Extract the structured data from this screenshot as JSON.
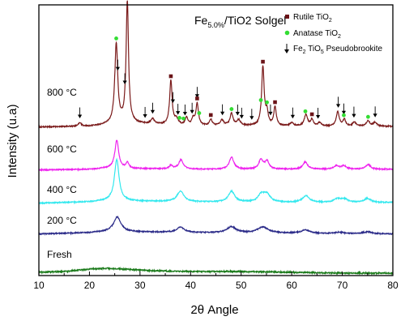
{
  "chart_data": {
    "type": "line",
    "title_main": "Fe",
    "title_sub": "5.0%",
    "title_rest": "/TiO2 Solgel",
    "xlabel_pre": "2",
    "xlabel_theta": "θ",
    "xlabel_post": " Angle",
    "ylabel": "Intensity (u.a)",
    "xlim": [
      10,
      80
    ],
    "xticks": [
      "10",
      "20",
      "30",
      "40",
      "50",
      "60",
      "70",
      "80"
    ],
    "grid": false,
    "legend_position": "top-right",
    "legend": [
      {
        "marker": "square",
        "color": "#6b1418",
        "text": "Rutile TiO",
        "sub": "2"
      },
      {
        "marker": "circle",
        "color": "#33dd33",
        "text": "Anatase TiO",
        "sub": "2"
      },
      {
        "marker": "arrow",
        "color": "#000000",
        "text": "Fe",
        "sub": "2",
        "text2": " TiO",
        "sub2": "5",
        "text3": " Pseudobrookite"
      }
    ],
    "series": [
      {
        "name": "800 °C",
        "color": "#7a1a1a",
        "baseline": 0.0,
        "background": [
          [
            10,
            4
          ],
          [
            20,
            5
          ],
          [
            24,
            8
          ],
          [
            28,
            10
          ],
          [
            32,
            8
          ],
          [
            40,
            6
          ],
          [
            50,
            6
          ],
          [
            60,
            5
          ],
          [
            70,
            5
          ],
          [
            80,
            5
          ]
        ],
        "peaks": [
          [
            18.1,
            5,
            0.4
          ],
          [
            25.3,
            120,
            0.35
          ],
          [
            27.4,
            26,
            0.3
          ],
          [
            27.5,
            158,
            0.28
          ],
          [
            32.5,
            8,
            0.4
          ],
          [
            36.1,
            66,
            0.3
          ],
          [
            37.2,
            8,
            0.4
          ],
          [
            39.2,
            12,
            0.3
          ],
          [
            40.5,
            10,
            0.3
          ],
          [
            41.3,
            33,
            0.3
          ],
          [
            44.0,
            9,
            0.3
          ],
          [
            46.2,
            8,
            0.4
          ],
          [
            48.1,
            18,
            0.35
          ],
          [
            49.5,
            8,
            0.4
          ],
          [
            54.3,
            88,
            0.3
          ],
          [
            55.1,
            18,
            0.3
          ],
          [
            56.7,
            28,
            0.3
          ],
          [
            60.0,
            5,
            0.4
          ],
          [
            62.8,
            17,
            0.4
          ],
          [
            64.0,
            10,
            0.3
          ],
          [
            65.5,
            5,
            0.4
          ],
          [
            69.1,
            22,
            0.35
          ],
          [
            70.4,
            10,
            0.3
          ],
          [
            72.4,
            6,
            0.4
          ],
          [
            75.1,
            8,
            0.4
          ],
          [
            76.5,
            6,
            0.4
          ]
        ]
      },
      {
        "name": "600 °C",
        "color": "#ee22ee",
        "baseline": 0.0,
        "background": [
          [
            10,
            4
          ],
          [
            20,
            5
          ],
          [
            24,
            7
          ],
          [
            30,
            6
          ],
          [
            40,
            5
          ],
          [
            60,
            5
          ],
          [
            80,
            5
          ]
        ],
        "peaks": [
          [
            25.4,
            42,
            0.45
          ],
          [
            27.5,
            9,
            0.3
          ],
          [
            36.1,
            5,
            0.4
          ],
          [
            38.1,
            14,
            0.55
          ],
          [
            48.1,
            18,
            0.55
          ],
          [
            53.9,
            14,
            0.5
          ],
          [
            55.1,
            12,
            0.5
          ],
          [
            62.7,
            11,
            0.55
          ],
          [
            68.8,
            5,
            0.6
          ],
          [
            70.3,
            5,
            0.6
          ],
          [
            75.1,
            7,
            0.6
          ]
        ]
      },
      {
        "name": "400 °C",
        "color": "#33e8ee",
        "baseline": 0.0,
        "background": [
          [
            10,
            4
          ],
          [
            20,
            6
          ],
          [
            24,
            8
          ],
          [
            30,
            7
          ],
          [
            40,
            6
          ],
          [
            60,
            5
          ],
          [
            80,
            5
          ]
        ],
        "peaks": [
          [
            25.4,
            62,
            0.55
          ],
          [
            38.0,
            16,
            0.8
          ],
          [
            48.1,
            16,
            0.75
          ],
          [
            54.0,
            11,
            0.8
          ],
          [
            55.1,
            11,
            0.8
          ],
          [
            62.8,
            10,
            0.8
          ],
          [
            69.0,
            5,
            0.8
          ],
          [
            70.4,
            5,
            0.8
          ],
          [
            75.0,
            6,
            0.8
          ]
        ]
      },
      {
        "name": "200 °C",
        "color": "#2a2a88",
        "baseline": 0.0,
        "background": [
          [
            10,
            4
          ],
          [
            20,
            6
          ],
          [
            24,
            8
          ],
          [
            30,
            7
          ],
          [
            40,
            6
          ],
          [
            60,
            5
          ],
          [
            80,
            4
          ]
        ],
        "peaks": [
          [
            25.5,
            22,
            0.85
          ],
          [
            38.0,
            8,
            0.9
          ],
          [
            48.1,
            9,
            1.1
          ],
          [
            54.3,
            9,
            1.3
          ],
          [
            62.7,
            5,
            1.0
          ],
          [
            69.5,
            2,
            1.0
          ],
          [
            75.0,
            3,
            1.0
          ]
        ]
      },
      {
        "name": "Fresh",
        "color": "#1a7a1a",
        "baseline": 0.0,
        "background": [
          [
            10,
            2
          ],
          [
            15,
            3
          ],
          [
            20,
            6
          ],
          [
            23,
            7
          ],
          [
            27,
            6
          ],
          [
            32,
            4
          ],
          [
            40,
            3
          ],
          [
            50,
            3
          ],
          [
            60,
            2
          ],
          [
            70,
            1
          ],
          [
            80,
            1
          ]
        ],
        "peaks": []
      }
    ],
    "rutile_markers_x": [
      27.5,
      36.1,
      41.3,
      44.0,
      54.3,
      56.7,
      64.0
    ],
    "anatase_markers_x": [
      25.3,
      37.8,
      38.6,
      41.7,
      48.1,
      53.9,
      55.1,
      62.7,
      70.3,
      75.1
    ],
    "pseudobrookite_markers_x": [
      18.1,
      25.6,
      27.0,
      31.0,
      32.5,
      36.5,
      37.5,
      38.9,
      40.3,
      41.3,
      46.3,
      49.3,
      50.1,
      52.1,
      55.8,
      60.2,
      65.2,
      69.2,
      70.3,
      72.3,
      76.5
    ]
  }
}
